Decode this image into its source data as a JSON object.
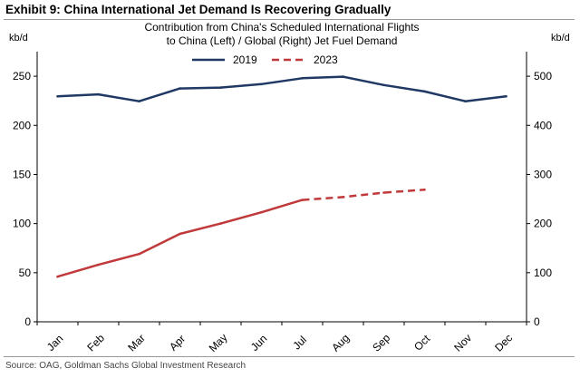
{
  "header": {
    "exhibit_title": "Exhibit 9:  China International Jet Demand Is Recovering Gradually"
  },
  "footer": {
    "source": "Source: OAG, Goldman Sachs Global Investment Research"
  },
  "chart_data": {
    "type": "line",
    "title_lines": [
      "Contribution from China's Scheduled International Flights",
      "to China (Left) / Global (Right) Jet Fuel Demand"
    ],
    "ylabel_left": "kb/d",
    "ylabel_right": "kb/d",
    "categories": [
      "Jan",
      "Feb",
      "Mar",
      "Apr",
      "May",
      "Jun",
      "Jul",
      "Aug",
      "Sep",
      "Oct",
      "Nov",
      "Dec"
    ],
    "ylim_left": [
      0,
      275
    ],
    "ylim_right": [
      0,
      550
    ],
    "yticks_left": [
      0,
      50,
      100,
      150,
      200,
      250
    ],
    "yticks_right": [
      0,
      100,
      200,
      300,
      400,
      500
    ],
    "legend_position": "top-center",
    "series": [
      {
        "name": "2019",
        "axis": "right",
        "style": "solid",
        "color": "#1f3864",
        "values": [
          459,
          463,
          449,
          475,
          477,
          484,
          496,
          499,
          482,
          469,
          449,
          459
        ]
      },
      {
        "name": "2023",
        "axis": "right",
        "style": "solid-then-dashed",
        "dash_from_index": 6,
        "color": "#c0393b",
        "values": [
          92,
          116,
          138,
          179,
          200,
          223,
          248,
          254,
          263,
          269,
          null,
          null
        ]
      }
    ]
  }
}
